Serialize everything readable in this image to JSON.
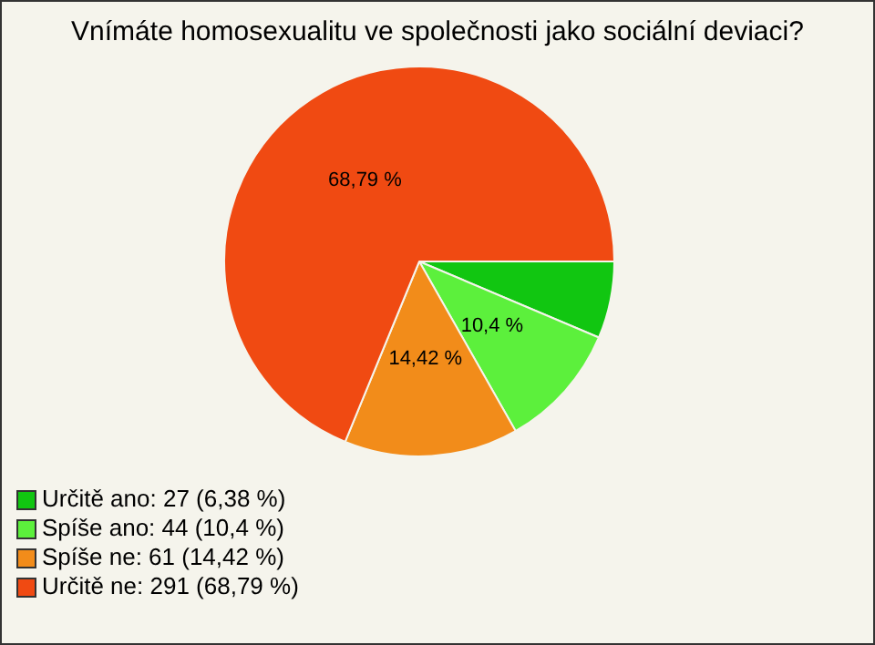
{
  "chart_data": {
    "type": "pie",
    "title": "Vnímáte homosexualitu ve společnosti jako sociální deviaci?",
    "categories": [
      "Určitě ano: 27 (6,38 %)",
      "Spíše ano: 44 (10,4 %)",
      "Spíše ne: 61 (14,42 %)",
      "Určitě ne: 291 (68,79 %)"
    ],
    "values": [
      6.38,
      10.4,
      14.42,
      68.79
    ],
    "colors": [
      "#11c611",
      "#5cf03c",
      "#f28c1a",
      "#f04a12"
    ],
    "value_labels": [
      null,
      "10,4 %",
      "14,42 %",
      "68,79 %"
    ],
    "legend": "bottom left"
  }
}
